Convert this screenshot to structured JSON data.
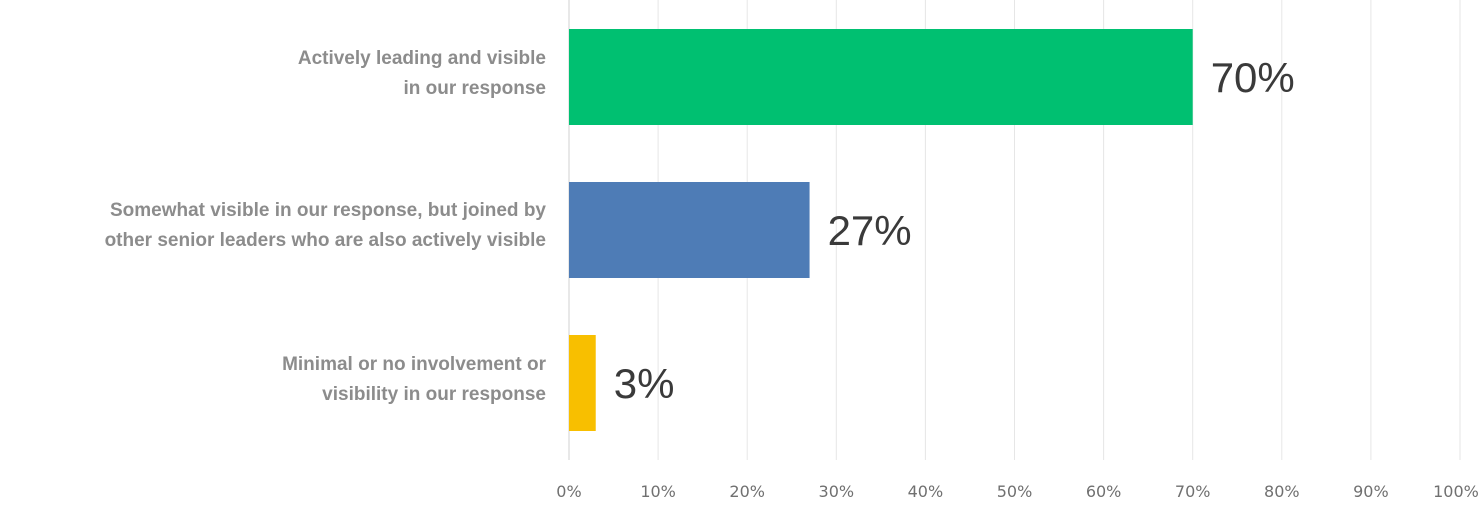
{
  "chart_data": {
    "type": "bar",
    "orientation": "horizontal",
    "title": "",
    "xlabel": "",
    "ylabel": "",
    "xlim": [
      0,
      100
    ],
    "grid": true,
    "legend": "none",
    "categories": [
      "Actively leading and visible\nin our response",
      "Somewhat visible in our response, but joined by\nother senior leaders who are also actively visible",
      "Minimal or no involvement or\nvisibility in our response"
    ],
    "values": [
      70,
      27,
      3
    ],
    "data_labels": [
      "70%",
      "27%",
      "3%"
    ],
    "colors": [
      "#00c071",
      "#4e7cb6",
      "#f8bf00"
    ],
    "x_ticks": [
      "0%",
      "10%",
      "20%",
      "30%",
      "40%",
      "50%",
      "60%",
      "70%",
      "80%",
      "90%",
      "100%"
    ]
  }
}
